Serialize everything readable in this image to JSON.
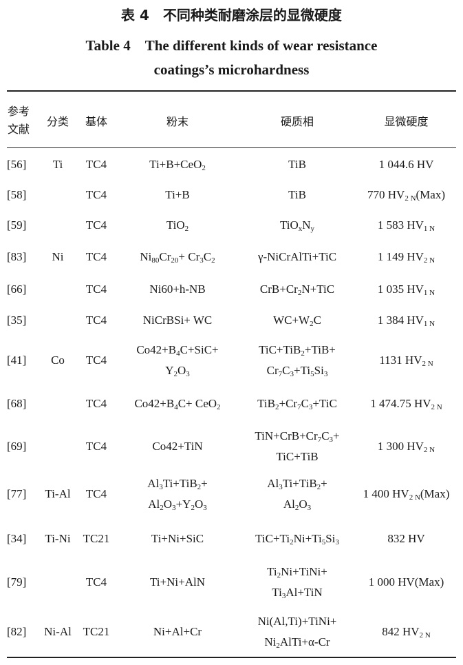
{
  "title_cn": "表 4　不同种类耐磨涂层的显微硬度",
  "title_en_line1": "Table 4　The different kinds of wear resistance",
  "title_en_line2": "coatings’s microhardness",
  "table": {
    "headers": [
      "参考文献",
      "分类",
      "基体",
      "粉末",
      "硬质相",
      "显微硬度"
    ],
    "rows": [
      {
        "ref": "[56]",
        "class": "Ti",
        "substrate": "TC4",
        "powder": "Ti+B+CeO_{2}",
        "phase": "TiB",
        "hardness": "1 044.6 HV"
      },
      {
        "ref": "[58]",
        "class": "",
        "substrate": "TC4",
        "powder": "Ti+B",
        "phase": "TiB",
        "hardness": "770 HV_{2 N}(Max)"
      },
      {
        "ref": "[59]",
        "class": "",
        "substrate": "TC4",
        "powder": "TiO_{2}",
        "phase": "TiO_{x}N_{y}",
        "hardness": "1 583 HV_{1 N}"
      },
      {
        "ref": "[83]",
        "class": "Ni",
        "substrate": "TC4",
        "powder": "Ni_{80}Cr_{20}+ Cr_{3}C_{2}",
        "phase": "γ-NiCrAlTi+TiC",
        "hardness": "1 149 HV_{2 N}"
      },
      {
        "ref": "[66]",
        "class": "",
        "substrate": "TC4",
        "powder": "Ni60+h-NB",
        "phase": "CrB+Cr_{2}N+TiC",
        "hardness": "1 035 HV_{1 N}"
      },
      {
        "ref": "[35]",
        "class": "",
        "substrate": "TC4",
        "powder": "NiCrBSi+ WC",
        "phase": "WC+W_{2}C",
        "hardness": "1 384 HV_{1 N}"
      },
      {
        "ref": "[41]",
        "class": "Co",
        "substrate": "TC4",
        "powder": "Co42+B_{4}C+SiC+|Y_{2}O_{3}",
        "phase": "TiC+TiB_{2}+TiB+|Cr_{7}C_{3}+Ti_{5}Si_{3}",
        "hardness": "1131 HV_{2 N}"
      },
      {
        "ref": "[68]",
        "class": "",
        "substrate": "TC4",
        "powder": "Co42+B_{4}C+ CeO_{2}",
        "phase": "TiB_{2}+Cr_{7}C_{3}+TiC",
        "hardness": "1 474.75 HV_{2 N}"
      },
      {
        "ref": "[69]",
        "class": "",
        "substrate": "TC4",
        "powder": "Co42+TiN",
        "phase": "TiN+CrB+Cr_{7}C_{3}+|TiC+TiB",
        "hardness": "1 300 HV_{2 N}"
      },
      {
        "ref": "[77]",
        "class": "Ti-Al",
        "substrate": "TC4",
        "powder": "Al_{3}Ti+TiB_{2}+|Al_{2}O_{3}+Y_{2}O_{3}",
        "phase": "Al_{3}Ti+TiB_{2}+|Al_{2}O_{3}",
        "hardness": "1 400 HV_{2 N}(Max)"
      },
      {
        "ref": "[34]",
        "class": "Ti-Ni",
        "substrate": "TC21",
        "powder": "Ti+Ni+SiC",
        "phase": "TiC+Ti_{2}Ni+Ti_{5}Si_{3}",
        "hardness": "832 HV"
      },
      {
        "ref": "[79]",
        "class": "",
        "substrate": "TC4",
        "powder": "Ti+Ni+AlN",
        "phase": "Ti_{2}Ni+TiNi+|Ti_{3}Al+TiN",
        "hardness": "1 000 HV(Max)"
      },
      {
        "ref": "[82]",
        "class": "Ni-Al",
        "substrate": "TC21",
        "powder": "Ni+Al+Cr",
        "phase": "Ni(Al,Ti)+TiNi+|Ni_{2}AlTi+α-Cr",
        "hardness": "842 HV_{2 N}"
      }
    ]
  }
}
